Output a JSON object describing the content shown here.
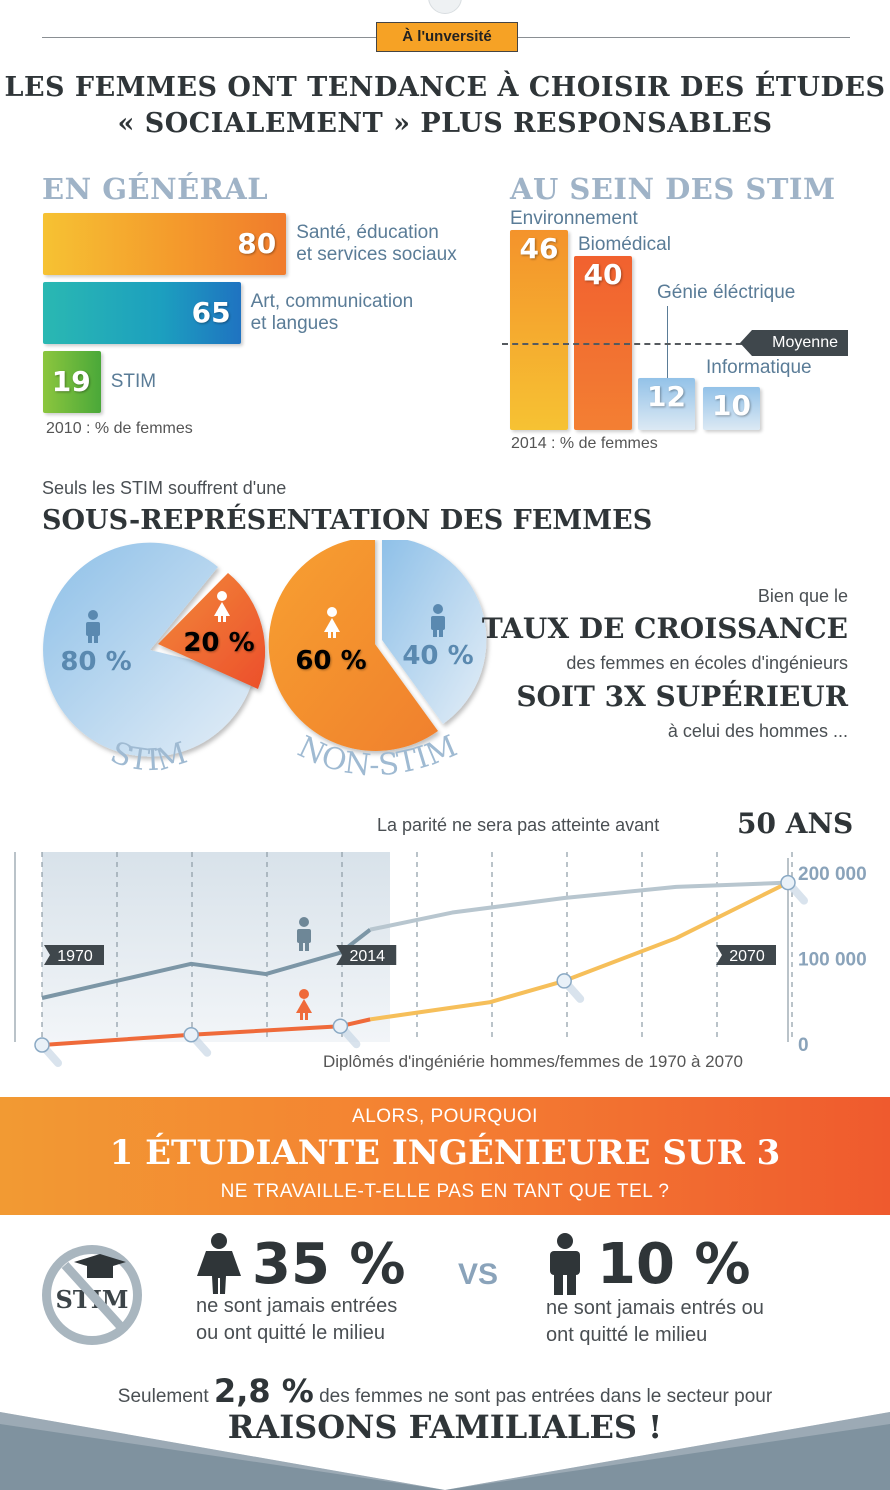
{
  "header": {
    "tag": "À l'unversité",
    "title_line1": "LES FEMMES ONT TENDANCE À CHOISIR DES ÉTUDES",
    "title_line2": "« SOCIALEMENT » PLUS RESPONSABLES"
  },
  "colors": {
    "orange": "#f4962a",
    "red_orange": "#ef5a2e",
    "teal": "#1aa7b1",
    "green": "#5bb13c",
    "light_blue": "#a9cbe8",
    "grey_blue": "#90a4b4",
    "dark": "#2f3538"
  },
  "chart_data": [
    {
      "type": "bar",
      "orientation": "horizontal",
      "title": "EN GÉNÉRAL",
      "note": "2010 : % de femmes",
      "categories": [
        "Santé, éducation et services sociaux",
        "Art, communication et langues",
        "STIM"
      ],
      "label_lines": [
        [
          "Santé, éducation",
          "et services sociaux"
        ],
        [
          "Art, communication",
          "et langues"
        ],
        [
          "STIM"
        ]
      ],
      "values": [
        80,
        65,
        19
      ],
      "xlim": [
        0,
        100
      ]
    },
    {
      "type": "bar",
      "title": "AU SEIN DES STIM",
      "note": "2014 : % de femmes",
      "categories": [
        "Environnement",
        "Biomédical",
        "Génie éléctrique",
        "Informatique"
      ],
      "values": [
        46,
        40,
        12,
        10
      ],
      "reference_line": {
        "label": "Moyenne",
        "value": 20
      },
      "ylim": [
        0,
        50
      ]
    },
    {
      "type": "pie",
      "title": "STIM",
      "slices": [
        {
          "name": "hommes",
          "value": 80,
          "label": "80 %"
        },
        {
          "name": "femmes",
          "value": 20,
          "label": "20 %"
        }
      ]
    },
    {
      "type": "pie",
      "title": "NON-STIM",
      "slices": [
        {
          "name": "femmes",
          "value": 60,
          "label": "60 %"
        },
        {
          "name": "hommes",
          "value": 40,
          "label": "40 %"
        }
      ]
    },
    {
      "type": "line",
      "caption": "Diplômés d'ingéniérie hommes/femmes de 1970 à 2070",
      "x_markers": [
        "1970",
        "2014",
        "2070"
      ],
      "y_tick_labels": [
        "0",
        "100 000",
        "200 000"
      ],
      "ylim": [
        0,
        220000
      ],
      "xlim": [
        1970,
        2070
      ],
      "series": [
        {
          "name": "hommes",
          "x": [
            1970,
            1980,
            1990,
            2000,
            2010,
            2014,
            2025,
            2040,
            2055,
            2070
          ],
          "values": [
            55000,
            75000,
            95000,
            83000,
            108000,
            135000,
            155000,
            172000,
            185000,
            190000
          ]
        },
        {
          "name": "femmes",
          "x": [
            1970,
            1990,
            2010,
            2014,
            2030,
            2040,
            2055,
            2070
          ],
          "values": [
            0,
            12000,
            22000,
            30000,
            50000,
            75000,
            125000,
            190000
          ]
        }
      ]
    }
  ],
  "section2": {
    "intro": "Seuls les STIM souffrent d'une",
    "heading": "SOUS-REPRÉSENTATION DES FEMMES",
    "pie1_name": "STIM",
    "pie2_name": "NON-STIM",
    "pie1_men": "80 %",
    "pie1_women": "20 %",
    "pie2_women": "60 %",
    "pie2_men": "40 %",
    "right_l1": "Bien que le",
    "right_l2": "TAUX DE CROISSANCE",
    "right_l3": "des femmes en écoles d'ingénieurs",
    "right_l4": "SOIT 3X SUPÉRIEUR",
    "right_l5": "à celui des hommes ..."
  },
  "section3": {
    "parite": "La parité ne sera pas atteinte avant",
    "fifty": "50 ANS"
  },
  "banner": {
    "line1": "ALORS, POURQUOI",
    "line2": "1 ÉTUDIANTE INGÉNIEURE SUR 3",
    "line3": "NE TRAVAILLE-T-ELLE PAS EN TANT QUE TEL ?"
  },
  "bottom": {
    "stim_logo": "STIM",
    "women_pct": "35 %",
    "women_l1": "ne sont jamais entrées",
    "women_l2": "ou ont quitté le milieu",
    "vs": "VS",
    "men_pct": "10 %",
    "men_l1": "ne sont jamais entrés ou",
    "men_l2": "ont quitté le milieu",
    "seul_pre": "Seulement",
    "seul_pct": "2,8 %",
    "seul_post": "des femmes ne sont pas entrées dans le secteur pour",
    "raisons": "RAISONS FAMILIALES !"
  }
}
